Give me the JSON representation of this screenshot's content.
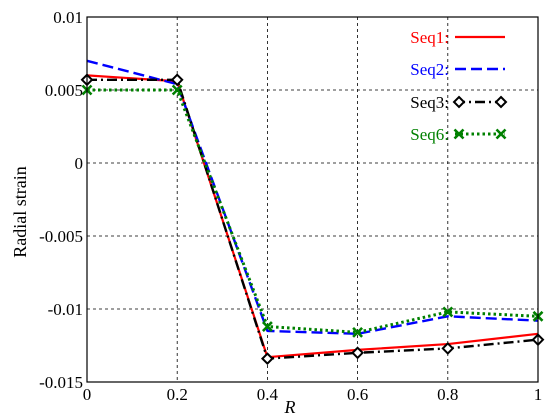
{
  "chart_data": {
    "type": "line",
    "title": "",
    "xlabel": "R",
    "ylabel": "Radial strain",
    "xlim": [
      0,
      1
    ],
    "ylim": [
      -0.015,
      0.01
    ],
    "x_ticks": [
      0,
      0.2,
      0.4,
      0.6,
      0.8,
      1
    ],
    "x_tick_labels": [
      "0",
      "0.2",
      "0.4",
      "0.6",
      "0.8",
      "1"
    ],
    "y_ticks": [
      0.01,
      0.005,
      0,
      -0.005,
      -0.01,
      -0.015
    ],
    "y_tick_labels": [
      "0.01",
      "0.005",
      "0",
      "-0.005",
      "-0.01",
      "-0.015"
    ],
    "grid": true,
    "legend_position": "top-right",
    "x": [
      0,
      0.2,
      0.4,
      0.6,
      0.8,
      1
    ],
    "series": [
      {
        "name": "Seq1",
        "color": "#ff0000",
        "dash": "solid",
        "marker": "none",
        "values": [
          0.006,
          0.0056,
          -0.0133,
          -0.0128,
          -0.0124,
          -0.0117
        ]
      },
      {
        "name": "Seq2",
        "color": "#0000ff",
        "dash": "dashed",
        "marker": "none",
        "values": [
          0.007,
          0.0054,
          -0.0115,
          -0.0117,
          -0.0105,
          -0.0108
        ]
      },
      {
        "name": "Seq3",
        "color": "#000000",
        "dash": "dashdot",
        "marker": "diamond",
        "values": [
          0.0057,
          0.0057,
          -0.0134,
          -0.013,
          -0.0127,
          -0.0121
        ]
      },
      {
        "name": "Seq6",
        "color": "#008000",
        "dash": "dotted",
        "marker": "x",
        "values": [
          0.005,
          0.005,
          -0.0112,
          -0.0116,
          -0.0102,
          -0.0105
        ]
      }
    ],
    "legend_labels": [
      "Seq1:",
      "Seq2:",
      "Seq3:",
      "Seq6:"
    ]
  }
}
